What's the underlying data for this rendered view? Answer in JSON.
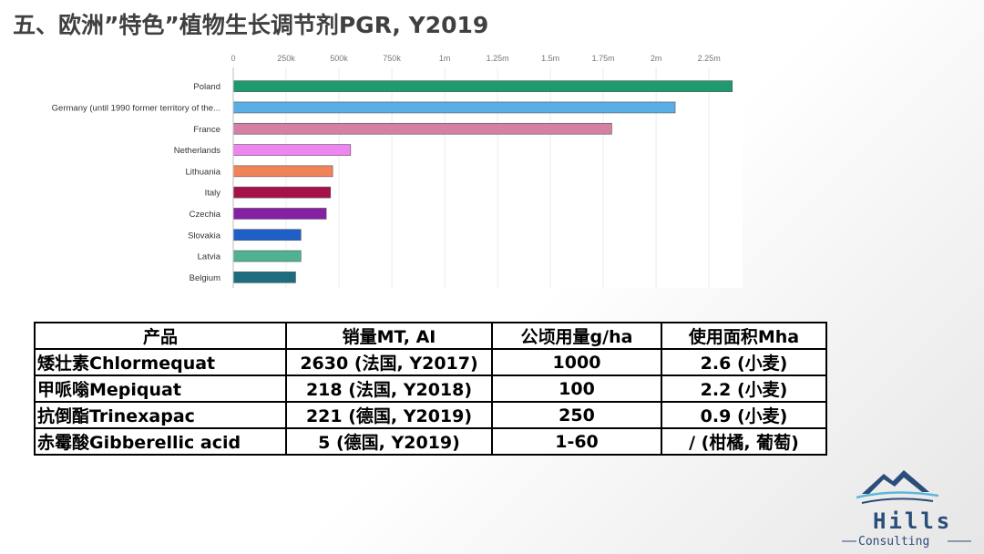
{
  "slide": {
    "title": "五、欧洲”特色”植物生长调节剂PGR, Y2019"
  },
  "chart_data": {
    "type": "bar",
    "orientation": "horizontal",
    "categories": [
      "Poland",
      "Germany (until 1990 former territory of the...",
      "France",
      "Netherlands",
      "Lithuania",
      "Italy",
      "Czechia",
      "Slovakia",
      "Latvia",
      "Belgium"
    ],
    "values": [
      2360000,
      2090000,
      1790000,
      555000,
      470000,
      460000,
      440000,
      320000,
      320000,
      295000
    ],
    "colors": [
      "#1f9a6e",
      "#5aaee6",
      "#d67fa4",
      "#f084f0",
      "#f0835a",
      "#a5124a",
      "#851fa3",
      "#1f5fc8",
      "#4fb391",
      "#1c6e7e"
    ],
    "xticks": [
      "0",
      "250k",
      "500k",
      "750k",
      "1m",
      "1.25m",
      "1.5m",
      "1.75m",
      "2m",
      "2.25m"
    ],
    "xlim": [
      0,
      2400000
    ],
    "grid": true,
    "title": "",
    "xlabel": "",
    "ylabel": ""
  },
  "table": {
    "headers": [
      "产品",
      "销量MT, AI",
      "公顷用量g/ha",
      "使用面积Mha"
    ],
    "rows": [
      [
        "矮壮素Chlormequat",
        "2630 (法国, Y2017)",
        "1000",
        "2.6 (小麦)"
      ],
      [
        "甲哌嗡Mepiquat",
        "218 (法国, Y2018)",
        "100",
        "2.2 (小麦)"
      ],
      [
        "抗倒酯Trinexapac",
        "221 (德国, Y2019)",
        "250",
        "0.9 (小麦)"
      ],
      [
        "赤霉酸Gibberellic acid",
        "5 (德国, Y2019)",
        "1-60",
        "/ (柑橘, 葡萄)"
      ]
    ]
  },
  "logo": {
    "name": "Hills",
    "sub": "Consulting",
    "colors": {
      "mountain": "#2a4d7a",
      "accent": "#5fb7d9"
    }
  }
}
